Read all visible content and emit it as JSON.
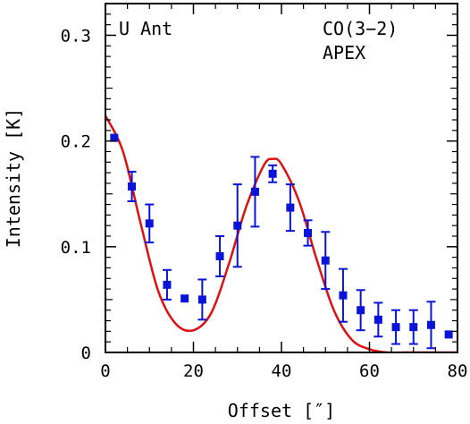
{
  "chart_data": {
    "type": "scatter",
    "xlabel": "Offset [″]",
    "ylabel": "Intensity [K]",
    "xlim": [
      0,
      80
    ],
    "ylim": [
      0,
      0.33
    ],
    "x_ticks": [
      "0",
      "20",
      "40",
      "60",
      "80"
    ],
    "y_ticks": [
      "0",
      "0.1",
      "0.2",
      "0.3"
    ],
    "x_tick_values": [
      0,
      20,
      40,
      60,
      80
    ],
    "y_tick_values": [
      0,
      0.1,
      0.2,
      0.3
    ],
    "annotations": {
      "left": "U Ant",
      "right_line1": "CO(3−2)",
      "right_line2": "APEX"
    },
    "colors": {
      "points": "#0a14d8",
      "model": "#e01010",
      "axes": "#000000"
    },
    "series": [
      {
        "type": "scatter-errorbar",
        "x": [
          2,
          6,
          10,
          14,
          18,
          22,
          26,
          30,
          34,
          38,
          42,
          46,
          50,
          54,
          58,
          62,
          66,
          70,
          74,
          78
        ],
        "y": [
          0.203,
          0.157,
          0.122,
          0.064,
          0.051,
          0.05,
          0.091,
          0.12,
          0.152,
          0.169,
          0.137,
          0.113,
          0.087,
          0.054,
          0.04,
          0.031,
          0.024,
          0.024,
          0.026,
          0.017
        ],
        "err": [
          0.003,
          0.014,
          0.018,
          0.014,
          0.003,
          0.019,
          0.019,
          0.039,
          0.033,
          0.008,
          0.022,
          0.012,
          0.027,
          0.025,
          0.019,
          0.016,
          0.016,
          0.016,
          0.022,
          0.003
        ]
      },
      {
        "type": "line",
        "x": [
          0,
          4,
          8,
          12,
          16,
          20,
          24,
          28,
          32,
          36,
          38,
          40,
          44,
          48,
          52,
          56,
          60,
          64,
          68,
          72,
          76,
          80
        ],
        "y": [
          0.224,
          0.19,
          0.122,
          0.058,
          0.027,
          0.021,
          0.037,
          0.083,
          0.138,
          0.177,
          0.183,
          0.178,
          0.143,
          0.088,
          0.039,
          0.012,
          0.003,
          0.0,
          0.0,
          0.0,
          0.0,
          0.0
        ]
      }
    ]
  }
}
